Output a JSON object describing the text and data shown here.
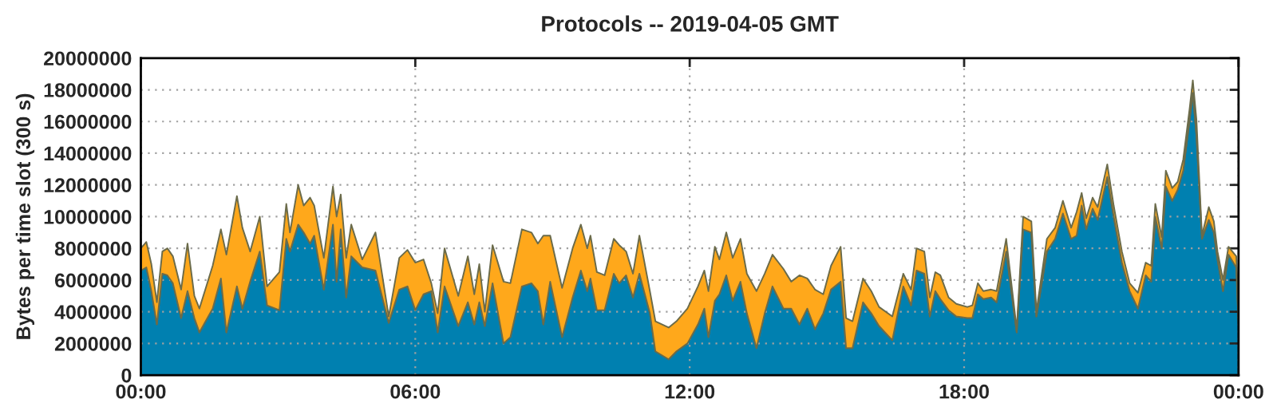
{
  "chart_data": {
    "type": "area",
    "stacked": true,
    "title": "Protocols -- 2019-04-05 GMT",
    "ylabel": "Bytes per time slot (300 s)",
    "x": [
      0,
      0.12,
      0.23,
      0.35,
      0.47,
      0.58,
      0.7,
      0.88,
      1.02,
      1.17,
      1.28,
      1.57,
      1.75,
      1.87,
      2.1,
      2.22,
      2.39,
      2.6,
      2.76,
      3.03,
      3.18,
      3.26,
      3.44,
      3.56,
      3.7,
      3.79,
      4.0,
      4.2,
      4.28,
      4.37,
      4.49,
      4.6,
      4.84,
      5.13,
      5.42,
      5.65,
      5.83,
      6.0,
      6.18,
      6.35,
      6.49,
      6.64,
      6.94,
      7.15,
      7.29,
      7.4,
      7.52,
      7.69,
      7.93,
      8.08,
      8.33,
      8.54,
      8.68,
      8.8,
      8.95,
      9.21,
      9.44,
      9.62,
      9.76,
      9.83,
      9.97,
      10.14,
      10.34,
      10.46,
      10.61,
      10.76,
      10.9,
      11.13,
      11.25,
      11.54,
      11.71,
      11.95,
      12.18,
      12.32,
      12.41,
      12.55,
      12.65,
      12.8,
      12.94,
      13.11,
      13.25,
      13.46,
      13.64,
      13.81,
      14.05,
      14.22,
      14.4,
      14.57,
      14.74,
      14.92,
      15.09,
      15.3,
      15.42,
      15.56,
      15.79,
      15.97,
      16.14,
      16.43,
      16.67,
      16.84,
      16.96,
      17.13,
      17.25,
      17.37,
      17.48,
      17.66,
      17.83,
      18.07,
      18.18,
      18.3,
      18.42,
      18.59,
      18.71,
      18.92,
      19.15,
      19.29,
      19.47,
      19.58,
      19.81,
      19.99,
      20.16,
      20.34,
      20.46,
      20.57,
      20.67,
      20.81,
      20.92,
      21.13,
      21.27,
      21.45,
      21.62,
      21.8,
      21.97,
      22.09,
      22.18,
      22.32,
      22.41,
      22.55,
      22.67,
      22.79,
      22.93,
      23.0,
      23.08,
      23.2,
      23.35,
      23.46,
      23.54,
      23.66,
      23.78,
      23.95,
      24.0
    ],
    "series": [
      {
        "color": "#0080b0",
        "values": [
          6600000,
          6800000,
          5300000,
          3200000,
          6400000,
          6300000,
          5800000,
          3600000,
          5300000,
          3600000,
          2700000,
          4200000,
          6100000,
          2700000,
          5600000,
          4200000,
          5900000,
          7800000,
          4400000,
          4100000,
          8600000,
          7800000,
          9500000,
          9000000,
          8300000,
          8800000,
          5400000,
          9500000,
          5900000,
          9200000,
          4900000,
          7500000,
          6800000,
          6600000,
          3300000,
          5400000,
          5600000,
          4100000,
          5100000,
          5300000,
          2700000,
          5600000,
          3100000,
          4600000,
          3200000,
          4600000,
          3100000,
          5800000,
          2000000,
          2400000,
          5600000,
          5800000,
          5300000,
          3200000,
          5900000,
          2400000,
          4900000,
          6600000,
          5300000,
          6100000,
          4100000,
          4100000,
          6400000,
          5800000,
          6300000,
          4900000,
          6400000,
          3900000,
          1500000,
          1000000,
          1500000,
          2000000,
          3200000,
          4200000,
          2400000,
          4700000,
          5100000,
          6300000,
          4700000,
          5900000,
          3900000,
          1700000,
          3900000,
          5600000,
          4200000,
          4200000,
          3200000,
          4200000,
          2900000,
          3900000,
          5400000,
          5900000,
          1700000,
          1700000,
          4600000,
          3900000,
          3100000,
          2200000,
          5600000,
          4400000,
          6600000,
          6400000,
          3700000,
          5300000,
          4800000,
          4100000,
          3700000,
          3600000,
          3600000,
          5100000,
          4800000,
          4900000,
          4600000,
          7800000,
          2700000,
          9200000,
          9000000,
          3700000,
          7800000,
          8600000,
          10200000,
          8600000,
          8800000,
          10700000,
          9200000,
          10500000,
          9800000,
          12500000,
          10000000,
          7100000,
          5300000,
          4200000,
          6300000,
          5900000,
          10000000,
          8000000,
          11900000,
          11000000,
          11700000,
          12900000,
          16100000,
          17800000,
          15100000,
          8600000,
          9800000,
          9000000,
          7300000,
          5300000,
          7600000,
          6800000,
          3200000
        ]
      },
      {
        "color": "#ffa81b",
        "values": [
          1400000,
          1600000,
          1700000,
          1400000,
          1400000,
          1700000,
          1700000,
          1800000,
          3000000,
          1400000,
          1500000,
          2700000,
          3100000,
          4900000,
          5700000,
          5100000,
          1900000,
          2200000,
          1200000,
          2400000,
          2200000,
          1200000,
          2500000,
          1700000,
          2900000,
          1900000,
          2000000,
          2400000,
          4100000,
          2200000,
          2500000,
          2000000,
          500000,
          2400000,
          400000,
          2000000,
          2300000,
          3000000,
          2200000,
          500000,
          1200000,
          2400000,
          1900000,
          2900000,
          1900000,
          2400000,
          900000,
          2400000,
          3900000,
          3400000,
          3600000,
          3200000,
          3000000,
          5600000,
          2900000,
          3100000,
          3100000,
          2900000,
          2700000,
          2700000,
          2400000,
          2200000,
          2200000,
          2400000,
          1500000,
          1500000,
          2400000,
          1400000,
          1900000,
          2000000,
          1900000,
          2200000,
          2400000,
          2400000,
          2900000,
          3400000,
          2200000,
          2700000,
          2700000,
          2700000,
          2500000,
          3600000,
          2500000,
          2000000,
          2500000,
          1700000,
          3100000,
          1900000,
          2500000,
          1200000,
          1500000,
          2200000,
          1900000,
          1700000,
          1500000,
          1400000,
          1200000,
          1500000,
          800000,
          1000000,
          1400000,
          1400000,
          1200000,
          1200000,
          1500000,
          800000,
          800000,
          700000,
          800000,
          700000,
          500000,
          500000,
          700000,
          800000,
          200000,
          800000,
          700000,
          300000,
          800000,
          700000,
          800000,
          700000,
          1500000,
          800000,
          700000,
          700000,
          800000,
          800000,
          700000,
          700000,
          500000,
          1000000,
          800000,
          1000000,
          800000,
          700000,
          1000000,
          800000,
          500000,
          700000,
          700000,
          800000,
          1000000,
          200000,
          800000,
          700000,
          500000,
          700000,
          500000,
          700000,
          1000000
        ]
      }
    ],
    "xlim": [
      0,
      24
    ],
    "xticks": [
      {
        "value": 0,
        "label": "00:00"
      },
      {
        "value": 6,
        "label": "06:00"
      },
      {
        "value": 12,
        "label": "12:00"
      },
      {
        "value": 18,
        "label": "18:00"
      },
      {
        "value": 24,
        "label": "00:00"
      }
    ],
    "ylim": [
      0,
      20000000
    ],
    "yticks": [
      0,
      2000000,
      4000000,
      6000000,
      8000000,
      10000000,
      12000000,
      14000000,
      16000000,
      18000000,
      20000000
    ],
    "grid": true
  }
}
